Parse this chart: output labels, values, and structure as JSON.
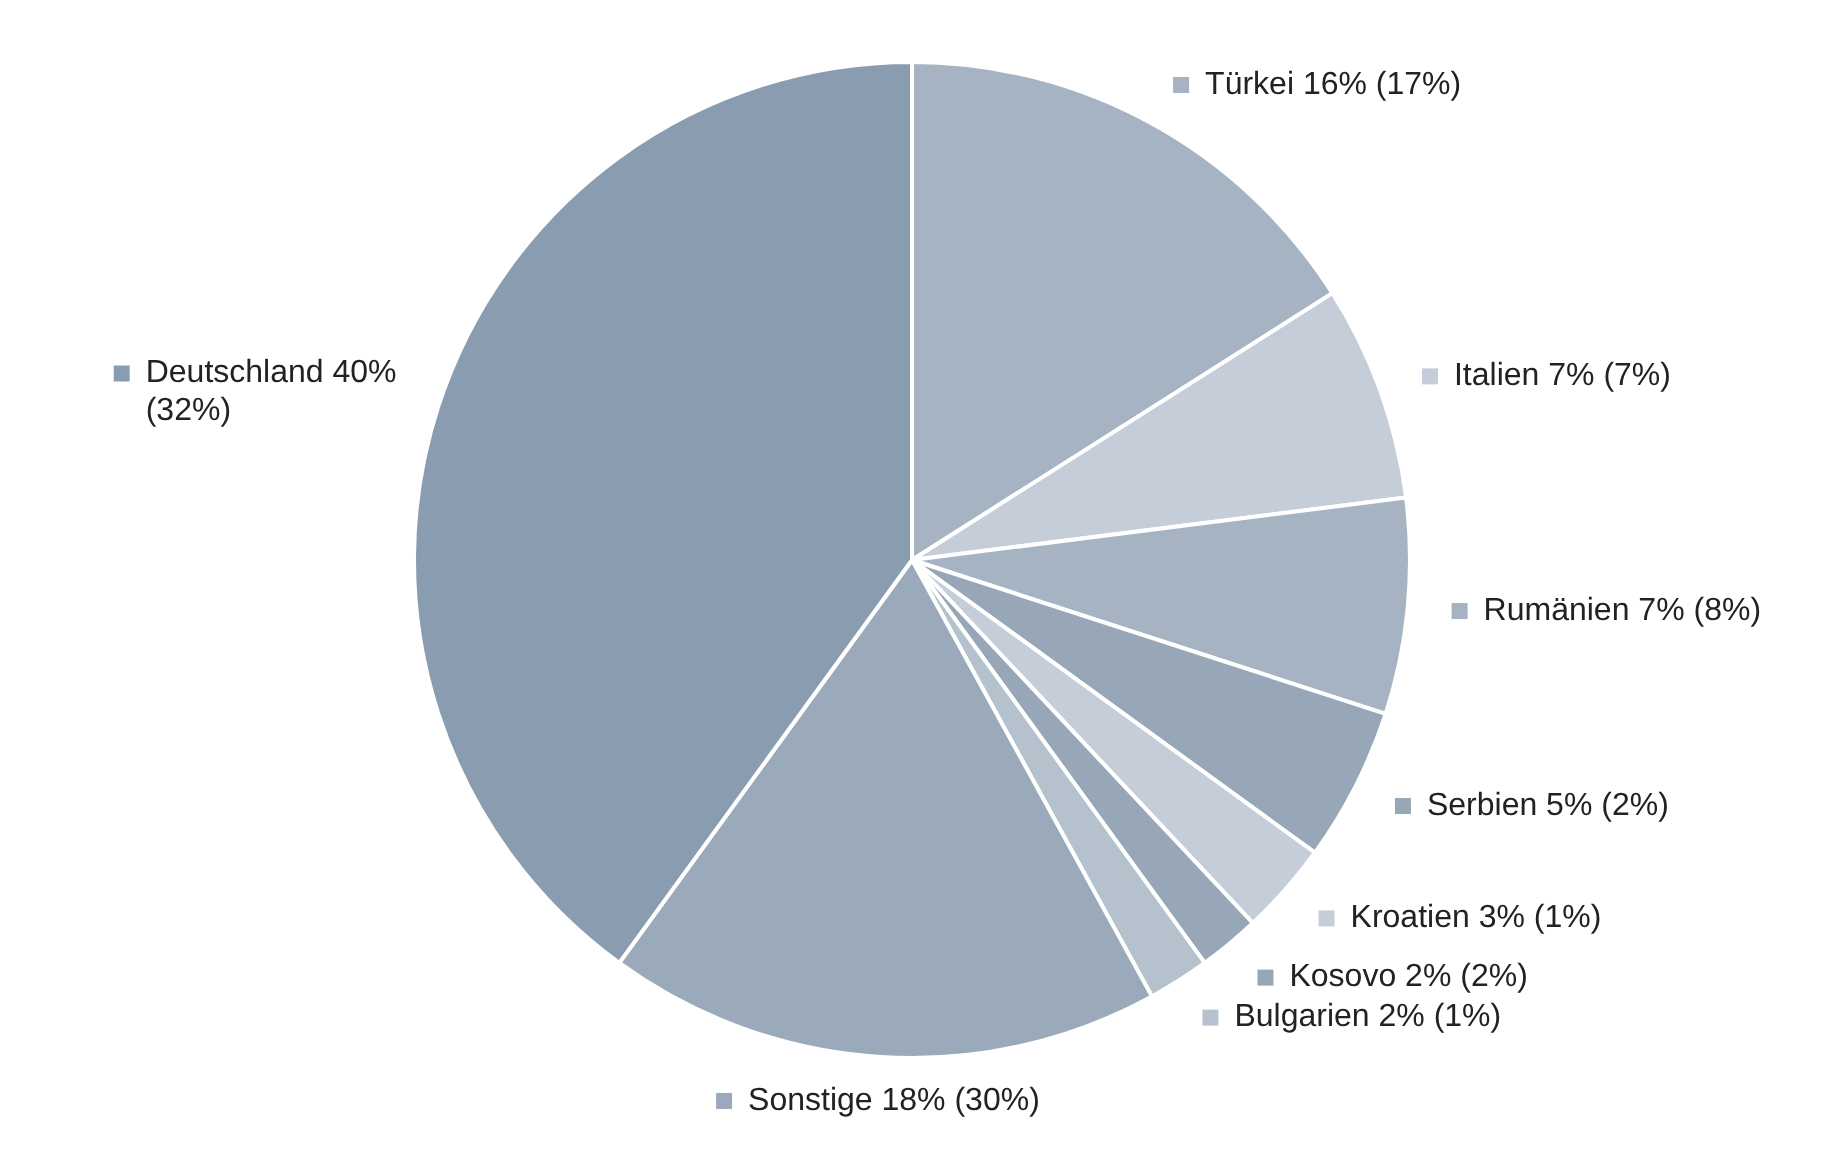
{
  "chart_data": {
    "type": "pie",
    "categories": [
      "Türkei",
      "Italien",
      "Rumänien",
      "Serbien",
      "Kroatien",
      "Kosovo",
      "Bulgarien",
      "Sonstige",
      "Deutschland"
    ],
    "values": [
      16,
      7,
      7,
      5,
      3,
      2,
      2,
      18,
      40
    ],
    "value_labels": [
      "16% (17%)",
      "7% (7%)",
      "7% (8%)",
      "5% (2%)",
      "3% (1%)",
      "2% (2%)",
      "2% (1%)",
      "18% (30%)",
      "40% (32%)"
    ],
    "colors": [
      "#a5b3c2",
      "#c5ced8",
      "#a5b3c2",
      "#97a7b8",
      "#c5ced8",
      "#97a7b8",
      "#b5c1cd",
      "#9aaabb",
      "#8a9db0"
    ],
    "legend": "right"
  }
}
